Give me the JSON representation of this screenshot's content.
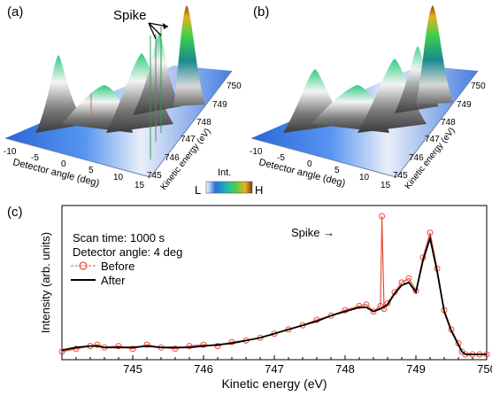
{
  "panels": {
    "a": {
      "label": "(a)",
      "spike_label": "Spike",
      "x_axis_title": "Detector angle (deg)",
      "x_ticks": [
        "-10",
        "-5",
        "0",
        "5",
        "10",
        "15"
      ],
      "y_axis_title": "Kinetic energy (eV)",
      "y_ticks": [
        "745",
        "746",
        "747",
        "748",
        "749",
        "750"
      ],
      "colorbar": {
        "title": "Int.",
        "low": "L",
        "high": "H"
      }
    },
    "b": {
      "label": "(b)",
      "x_axis_title": "Detector angle (deg)",
      "x_ticks": [
        "-10",
        "-5",
        "0",
        "5",
        "10",
        "15"
      ],
      "y_axis_title": "Kinetic energy (eV)",
      "y_ticks": [
        "745",
        "746",
        "747",
        "748",
        "749",
        "750"
      ]
    },
    "c": {
      "label": "(c)",
      "annotation_scan": "Scan time: 1000 s",
      "annotation_angle": "Detector angle: 4 deg",
      "spike_label": "Spike →"
    }
  },
  "colors": {
    "before": "#e8503a",
    "after": "#000000",
    "surface_low": "#1f5fd6",
    "surface_mid": "#f2f2f2",
    "surface_high": "#d4a017"
  },
  "chart_data": [
    {
      "type": "surface3d",
      "panel": "a",
      "x_label": "Detector angle (deg)",
      "y_label": "Kinetic energy (eV)",
      "x_range": [
        -10,
        15
      ],
      "y_range": [
        745,
        750
      ],
      "features": [
        "raised ridges near detector angle -5 and 5 deg",
        "dominant peak near 749.2 eV",
        "spikes on the front edge"
      ]
    },
    {
      "type": "surface3d",
      "panel": "b",
      "x_label": "Detector angle (deg)",
      "y_label": "Kinetic energy (eV)",
      "x_range": [
        -10,
        15
      ],
      "y_range": [
        745,
        750
      ],
      "features": [
        "same ridges with spikes removed",
        "dominant peak near 749.2 eV"
      ]
    },
    {
      "type": "line",
      "panel": "c",
      "xlabel": "Kinetic energy (eV)",
      "ylabel": "Intensity (arb. units)",
      "xlim": [
        744,
        750
      ],
      "x_ticks": [
        745,
        746,
        747,
        748,
        749,
        750
      ],
      "ylim": [
        0,
        1
      ],
      "legend": "top-left",
      "series": [
        {
          "name": "Before",
          "style": "line+circles",
          "x": [
            744.0,
            744.2,
            744.4,
            744.5,
            744.6,
            744.8,
            745.0,
            745.2,
            745.4,
            745.6,
            745.8,
            746.0,
            746.2,
            746.4,
            746.6,
            746.8,
            747.0,
            747.2,
            747.4,
            747.6,
            747.8,
            748.0,
            748.2,
            748.3,
            748.4,
            748.5,
            748.52,
            748.55,
            748.6,
            748.7,
            748.8,
            748.9,
            749.0,
            749.1,
            749.2,
            749.3,
            749.4,
            749.5,
            749.6,
            749.65,
            749.7,
            749.8,
            749.9,
            750.0
          ],
          "y": [
            0.02,
            0.04,
            0.06,
            0.07,
            0.05,
            0.06,
            0.04,
            0.07,
            0.05,
            0.04,
            0.06,
            0.07,
            0.06,
            0.09,
            0.1,
            0.12,
            0.15,
            0.18,
            0.21,
            0.25,
            0.28,
            0.32,
            0.35,
            0.36,
            0.31,
            0.35,
            1.0,
            0.33,
            0.37,
            0.45,
            0.52,
            0.55,
            0.46,
            0.7,
            0.88,
            0.62,
            0.32,
            0.18,
            0.08,
            0.02,
            0.0,
            0.0,
            0.0,
            0.0
          ]
        },
        {
          "name": "After",
          "style": "line",
          "x": [
            744.0,
            744.2,
            744.4,
            744.5,
            744.6,
            744.8,
            745.0,
            745.2,
            745.4,
            745.6,
            745.8,
            746.0,
            746.2,
            746.4,
            746.6,
            746.8,
            747.0,
            747.2,
            747.4,
            747.6,
            747.8,
            748.0,
            748.2,
            748.3,
            748.4,
            748.5,
            748.6,
            748.7,
            748.8,
            748.9,
            749.0,
            749.1,
            749.2,
            749.3,
            749.4,
            749.5,
            749.6,
            749.65,
            749.7,
            749.8,
            749.9,
            750.0
          ],
          "y": [
            0.03,
            0.05,
            0.06,
            0.06,
            0.05,
            0.05,
            0.05,
            0.06,
            0.05,
            0.05,
            0.05,
            0.06,
            0.07,
            0.08,
            0.1,
            0.12,
            0.15,
            0.18,
            0.21,
            0.24,
            0.28,
            0.31,
            0.34,
            0.34,
            0.31,
            0.33,
            0.36,
            0.44,
            0.5,
            0.52,
            0.45,
            0.68,
            0.84,
            0.6,
            0.31,
            0.17,
            0.07,
            0.02,
            0.0,
            0.0,
            0.0,
            0.0
          ]
        }
      ]
    }
  ]
}
